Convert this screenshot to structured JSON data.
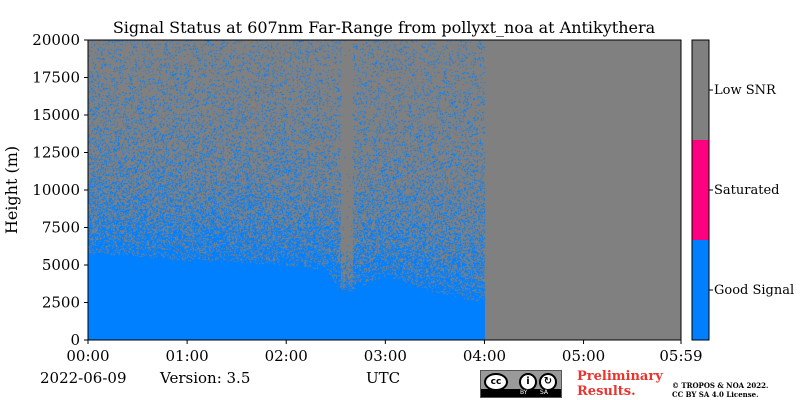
{
  "chart_data": {
    "type": "heatmap",
    "title": "Signal Status at 607nm Far-Range from pollyxt_noa at Antikythera",
    "ylabel": "Height (m)",
    "xlabel": "UTC",
    "x_ticks": [
      "00:00",
      "01:00",
      "02:00",
      "03:00",
      "04:00",
      "05:00",
      "05:59"
    ],
    "y_ticks": [
      "0",
      "2500",
      "5000",
      "7500",
      "10000",
      "12500",
      "15000",
      "17500",
      "20000"
    ],
    "xlim": [
      "00:00",
      "05:59"
    ],
    "ylim": [
      0,
      20000
    ],
    "colorbar": {
      "categories": [
        {
          "label": "Good Signal",
          "color": "#0080ff"
        },
        {
          "label": "Saturated",
          "color": "#ff0080"
        },
        {
          "label": "Low SNR",
          "color": "#808080"
        }
      ]
    },
    "profile": {
      "description_note": "",
      "time_hours": [
        0.0,
        0.5,
        1.0,
        1.5,
        2.0,
        2.4,
        2.55,
        2.65,
        3.0,
        3.5,
        4.0
      ],
      "good_signal_top_m": [
        5800,
        5600,
        5300,
        5200,
        5000,
        4700,
        3300,
        3300,
        4300,
        3200,
        2500
      ]
    },
    "data_end_time": "04:00",
    "gap_interval": [
      "02:33",
      "02:40"
    ]
  },
  "footer": {
    "date": "2022-06-09",
    "version": "Version: 3.5",
    "utc_label": "UTC",
    "preliminary_line1": "Preliminary",
    "preliminary_line2": "Results.",
    "copyright_line1": "© TROPOS & NOA 2022.",
    "copyright_line2": "CC BY SA 4.0 License."
  },
  "license_badge": {
    "cc": "cc",
    "by": "BY",
    "sa": "SA"
  },
  "colors": {
    "good": "#0080ff",
    "saturated": "#ff0080",
    "low_snr": "#808080",
    "preliminary": "#e8332f"
  }
}
